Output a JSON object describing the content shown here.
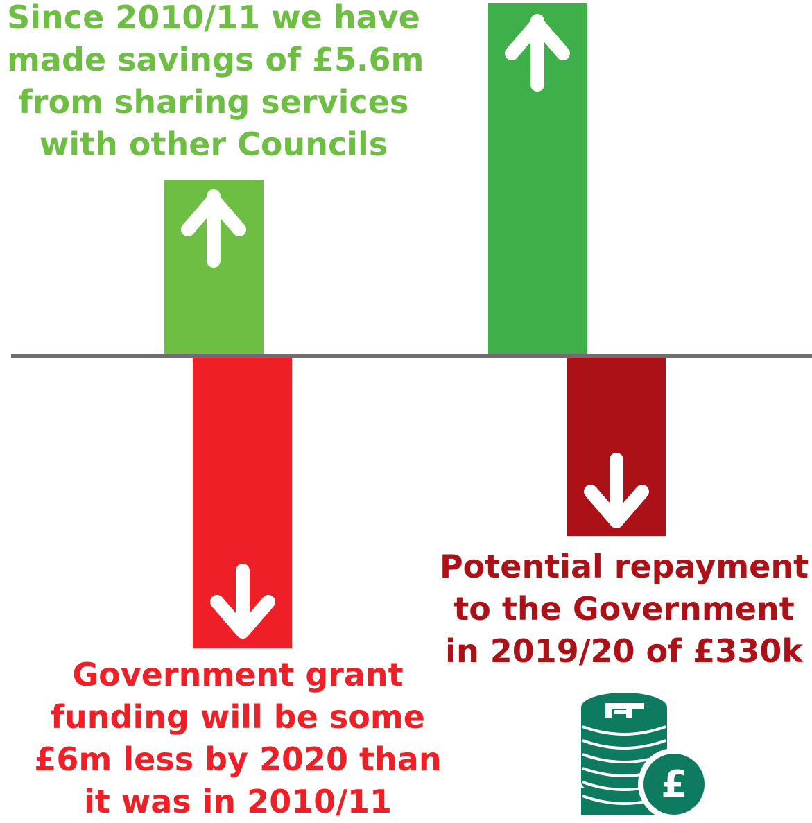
{
  "chart_data": {
    "type": "bar",
    "title": "",
    "xlabel": "",
    "ylabel": "",
    "series": [
      {
        "category": "shared-services-savings",
        "value": 5.6,
        "unit": "£m",
        "direction": "up",
        "color": "#6ebe44",
        "caption": [
          "Since 2010/11 we have",
          "made savings of £5.6m",
          "from sharing services",
          "with other Councils"
        ]
      },
      {
        "category": "government-grant-reduction",
        "value": -6,
        "unit": "£m",
        "direction": "down",
        "color": "#ee1f26",
        "caption": [
          "Government grant",
          "funding will be some",
          "£6m less by 2020 than",
          "it was in 2010/11"
        ]
      },
      {
        "category": "unlabelled-increase",
        "value": null,
        "direction": "up",
        "color": "#3faf49",
        "caption": []
      },
      {
        "category": "government-repayment",
        "value": -0.33,
        "unit": "£m",
        "direction": "down",
        "color": "#ac1117",
        "caption": [
          "Potential repayment",
          "to the Government",
          "in 2019/20 of £330k"
        ]
      }
    ],
    "baseline_color": "#6d6e70",
    "grid": false,
    "legend": "none"
  },
  "icons": {
    "coins": {
      "name": "pound-coins-icon",
      "color": "#0e7a5f",
      "symbol": "£"
    }
  }
}
